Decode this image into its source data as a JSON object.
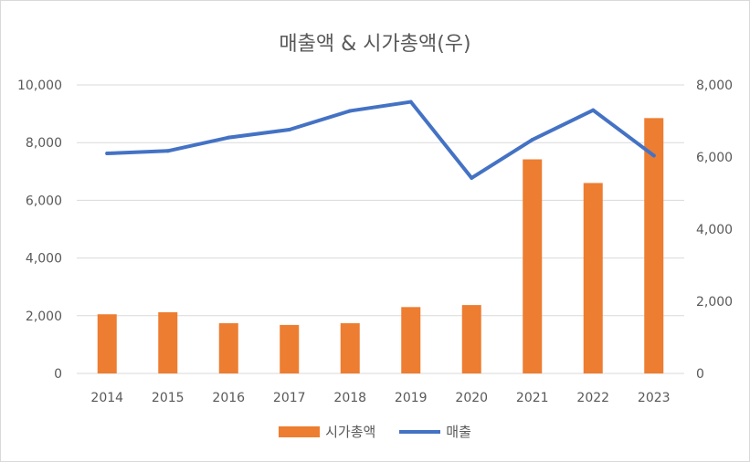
{
  "chart_data": {
    "type": "bar",
    "title": "매출액 & 시가총액(우)",
    "categories": [
      "2014",
      "2015",
      "2016",
      "2017",
      "2018",
      "2019",
      "2020",
      "2021",
      "2022",
      "2023"
    ],
    "series": [
      {
        "name": "시가총액",
        "kind": "bar",
        "axis": "left",
        "color": "#ed7d31",
        "values": [
          2050,
          2120,
          1740,
          1680,
          1740,
          2300,
          2370,
          7420,
          6600,
          8850
        ]
      },
      {
        "name": "매출",
        "kind": "line",
        "axis": "right",
        "color": "#4472c4",
        "values": [
          6100,
          6170,
          6540,
          6760,
          7280,
          7530,
          5420,
          6480,
          7300,
          6040
        ]
      }
    ],
    "y_left": {
      "ylim": [
        0,
        10000
      ],
      "ticks": [
        0,
        2000,
        4000,
        6000,
        8000,
        10000
      ],
      "tick_labels": [
        "0",
        "2,000",
        "4,000",
        "6,000",
        "8,000",
        "10,000"
      ]
    },
    "y_right": {
      "ylim": [
        0,
        8000
      ],
      "ticks": [
        0,
        2000,
        4000,
        6000,
        8000
      ],
      "tick_labels": [
        "0",
        "2,000",
        "4,000",
        "6,000",
        "8,000"
      ]
    },
    "xlabel": "",
    "ylabel": "",
    "grid": true,
    "legend_position": "bottom"
  },
  "legend": {
    "bar_label": "시가총액",
    "line_label": "매출"
  }
}
